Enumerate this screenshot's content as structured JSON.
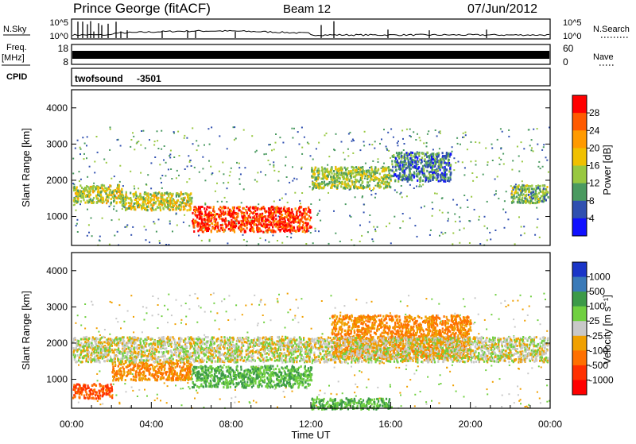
{
  "header": {
    "station": "Prince George (fitACF)",
    "beam": "Beam 12",
    "date": "07/Jun/2012"
  },
  "nsky_panel": {
    "left_label": "N.Sky",
    "left_ticks": [
      "10^5",
      "10^0"
    ],
    "right_ticks": [
      "10^5",
      "10^0"
    ],
    "right_label": "N.Search"
  },
  "freq_panel": {
    "left_label_top": "Freq.",
    "left_label_unit": "[MHz]",
    "left_ticks": [
      "18",
      "8"
    ],
    "right_ticks": [
      "60",
      "0"
    ],
    "right_label": "Nave"
  },
  "cpid_panel": {
    "label": "CPID",
    "program": "twofsound",
    "cpid": "-3501"
  },
  "legend": {
    "power": {
      "label": "Power [dB]",
      "ticks": [
        "28",
        "24",
        "20",
        "16",
        "12",
        "8",
        "4"
      ],
      "colors": [
        "#ff0000",
        "#ff5a00",
        "#ff9a00",
        "#f0c000",
        "#98c840",
        "#4a9a60",
        "#3050b0",
        "#1010ff"
      ]
    },
    "velocity": {
      "label": "Velocity [m s⁻¹]",
      "ticks": [
        "1000",
        "500",
        "100",
        "25",
        "-25",
        "-100",
        "-500",
        "-1000"
      ],
      "colors": [
        "#1a35c8",
        "#3a7ab8",
        "#3c9a48",
        "#70d040",
        "#c8c8c8",
        "#f0a000",
        "#ff7000",
        "#ff3000",
        "#ff0000"
      ]
    }
  },
  "chart_data": [
    {
      "type": "heatmap",
      "title": "Power",
      "ylabel": "Slant Range [km]",
      "ylim": [
        200,
        4500
      ],
      "yticks": [
        1000,
        2000,
        3000,
        4000
      ],
      "xlim": [
        0,
        24
      ],
      "colorbar": "Power [dB]",
      "features": [
        {
          "t": [
            0,
            2.5
          ],
          "range": [
            1400,
            1900
          ],
          "value": 16
        },
        {
          "t": [
            2.5,
            6
          ],
          "range": [
            1200,
            1700
          ],
          "value": 16
        },
        {
          "t": [
            6,
            12
          ],
          "range": [
            600,
            1300
          ],
          "value": 28
        },
        {
          "t": [
            12,
            16
          ],
          "range": [
            1800,
            2400
          ],
          "value": 14
        },
        {
          "t": [
            16,
            19
          ],
          "range": [
            2000,
            2800
          ],
          "value": 8
        },
        {
          "t": [
            22,
            24
          ],
          "range": [
            1400,
            1900
          ],
          "value": 12
        }
      ]
    },
    {
      "type": "heatmap",
      "title": "Velocity",
      "ylabel": "Slant Range [km]",
      "xlabel": "Time UT",
      "ylim": [
        200,
        4500
      ],
      "yticks": [
        1000,
        2000,
        3000,
        4000
      ],
      "xlim": [
        0,
        24
      ],
      "xticks": [
        "00:00",
        "04:00",
        "08:00",
        "12:00",
        "16:00",
        "20:00",
        "00:00"
      ],
      "colorbar": "Velocity [m s⁻¹]",
      "features": [
        {
          "t": [
            0,
            2
          ],
          "range": [
            500,
            900
          ],
          "value": -500
        },
        {
          "t": [
            2,
            6
          ],
          "range": [
            1000,
            1500
          ],
          "value": -100
        },
        {
          "t": [
            6,
            12
          ],
          "range": [
            800,
            1400
          ],
          "value": 100
        },
        {
          "t": [
            12,
            16
          ],
          "range": [
            200,
            500
          ],
          "value": 100
        },
        {
          "t": [
            13,
            20
          ],
          "range": [
            1600,
            2800
          ],
          "value": -100
        },
        {
          "t": [
            0,
            24
          ],
          "range": [
            1500,
            2200
          ],
          "value": 0
        }
      ]
    }
  ]
}
